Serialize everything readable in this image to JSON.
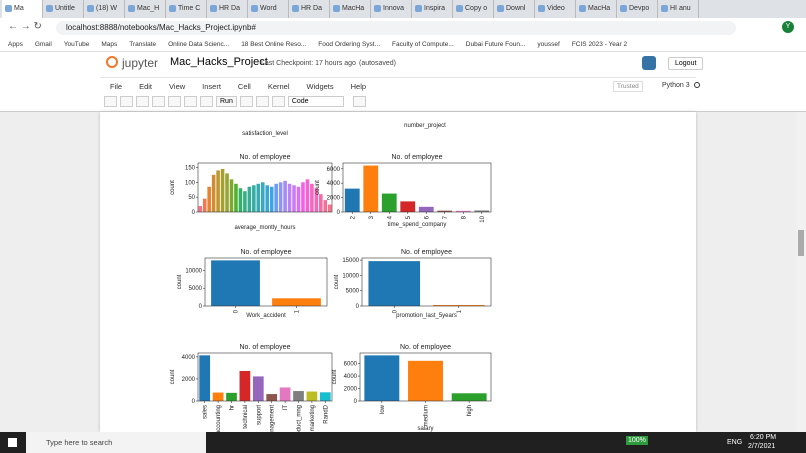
{
  "browser": {
    "tabs": [
      "Ma",
      "Untitle",
      "(18) W",
      "Mac_H",
      "Time C",
      "HR Da",
      "Word",
      "HR Da",
      "MacHa",
      "Innova",
      "Inspira",
      "Copy o",
      "Downl",
      "Video",
      "MacHa",
      "Devpo",
      "HI anu"
    ],
    "url": "localhost:8888/notebooks/Mac_Hacks_Project.ipynb#",
    "bookmarks": [
      "Apps",
      "Gmail",
      "YouTube",
      "Maps",
      "Translate",
      "Online Data Scienc...",
      "18 Best Online Reso...",
      "Food Ordering Syst...",
      "Faculty of Compute...",
      "Dubai Future Foun...",
      "youssef",
      "FCIS 2023 - Year 2"
    ],
    "profile": "Y"
  },
  "jupyter": {
    "logo": "jupyter",
    "notebook_name": "Mac_Hacks_Project",
    "checkpoint": "Last Checkpoint: 17 hours ago",
    "autosaved": "(autosaved)",
    "logout": "Logout",
    "menu": [
      "File",
      "Edit",
      "View",
      "Insert",
      "Cell",
      "Kernel",
      "Widgets",
      "Help"
    ],
    "trusted": "Trusted",
    "kernel": "Python 3",
    "run": "Run",
    "cell_type": "Code"
  },
  "chart_data": [
    {
      "type": "bar",
      "x_label": "satisfaction_level"
    },
    {
      "type": "bar",
      "x_label": "number_project"
    },
    {
      "type": "bar",
      "title": "No. of employee",
      "x_label": "average_montly_hours",
      "y_label": "count",
      "categories": [
        null,
        null,
        null,
        null,
        null,
        null,
        null,
        null,
        null,
        null,
        null,
        null,
        null,
        null,
        null,
        null,
        null,
        null,
        null,
        null,
        null,
        null,
        null,
        null,
        null,
        null,
        null,
        null,
        null,
        null
      ],
      "values": [
        20,
        45,
        85,
        125,
        140,
        145,
        130,
        110,
        95,
        80,
        70,
        85,
        90,
        95,
        100,
        90,
        85,
        95,
        100,
        105,
        95,
        90,
        85,
        100,
        110,
        95,
        80,
        60,
        40,
        25
      ],
      "colors": [
        "#f77189",
        "#f7754f",
        "#e5832f",
        "#d08c31",
        "#bb9832",
        "#a79e31",
        "#97a431",
        "#80a831",
        "#50b131",
        "#32b166",
        "#34af84",
        "#35ad96",
        "#36ada4",
        "#37abb2",
        "#38a9c0",
        "#39a7d0",
        "#3ba3e6",
        "#6e9bf4",
        "#8e96f4",
        "#a48cf4",
        "#bb83f4",
        "#cc7af4",
        "#dc6ff4",
        "#f45fe6",
        "#f562d3",
        "#f565c2",
        "#f668b3",
        "#f66aa4",
        "#f66d95",
        "#f77189"
      ],
      "ylim": [
        0,
        165
      ],
      "yticks": [
        0,
        50,
        100,
        150
      ]
    },
    {
      "type": "bar",
      "title": "No. of employee",
      "x_label": "time_spend_company",
      "y_label": "count",
      "categories": [
        "2",
        "3",
        "4",
        "5",
        "6",
        "7",
        "8",
        "10"
      ],
      "values": [
        3244,
        6443,
        2557,
        1473,
        718,
        188,
        162,
        214
      ],
      "colors": [
        "#1f77b4",
        "#ff7f0e",
        "#2ca02c",
        "#d62728",
        "#9467bd",
        "#8c564b",
        "#e377c2",
        "#7f7f7f"
      ],
      "ylim": [
        0,
        6800
      ],
      "yticks": [
        0,
        2000,
        4000,
        6000
      ]
    },
    {
      "type": "bar",
      "title": "No. of employee",
      "x_label": "Work_accident",
      "y_label": "count",
      "categories": [
        "0",
        "1"
      ],
      "values": [
        12830,
        2169
      ],
      "colors": [
        "#1f77b4",
        "#ff7f0e"
      ],
      "ylim": [
        0,
        13500
      ],
      "yticks": [
        0,
        5000,
        10000
      ]
    },
    {
      "type": "bar",
      "title": "No. of employee",
      "x_label": "promotion_last_5years",
      "y_label": "count",
      "categories": [
        "0",
        "1"
      ],
      "values": [
        14680,
        319
      ],
      "colors": [
        "#1f77b4",
        "#ff7f0e"
      ],
      "ylim": [
        0,
        15700
      ],
      "yticks": [
        0,
        5000,
        10000,
        15000
      ]
    },
    {
      "type": "bar",
      "title": "No. of employee",
      "y_label": "count",
      "categories": [
        "sales",
        "accounting",
        "hr",
        "technical",
        "support",
        "nagement",
        "IT",
        "oduct_mng",
        "marketing",
        "RandD"
      ],
      "values": [
        4140,
        767,
        739,
        2720,
        2229,
        630,
        1227,
        902,
        858,
        787
      ],
      "colors": [
        "#1f77b4",
        "#ff7f0e",
        "#2ca02c",
        "#d62728",
        "#9467bd",
        "#8c564b",
        "#e377c2",
        "#7f7f7f",
        "#bcbd22",
        "#17becf"
      ],
      "ylim": [
        0,
        4350
      ],
      "yticks": [
        0,
        2000,
        4000
      ]
    },
    {
      "type": "bar",
      "title": "No. of employee",
      "x_label": "salary",
      "y_label": "count",
      "categories": [
        "low",
        "medium",
        "high"
      ],
      "values": [
        7316,
        6446,
        1237
      ],
      "colors": [
        "#1f77b4",
        "#ff7f0e",
        "#2ca02c"
      ],
      "ylim": [
        0,
        7700
      ],
      "yticks": [
        0,
        2000,
        4000,
        6000
      ]
    }
  ],
  "taskbar": {
    "search": "Type here to search",
    "battery": "100%",
    "language": "ENG",
    "time": "6:20 PM",
    "date": "2/7/2021"
  }
}
